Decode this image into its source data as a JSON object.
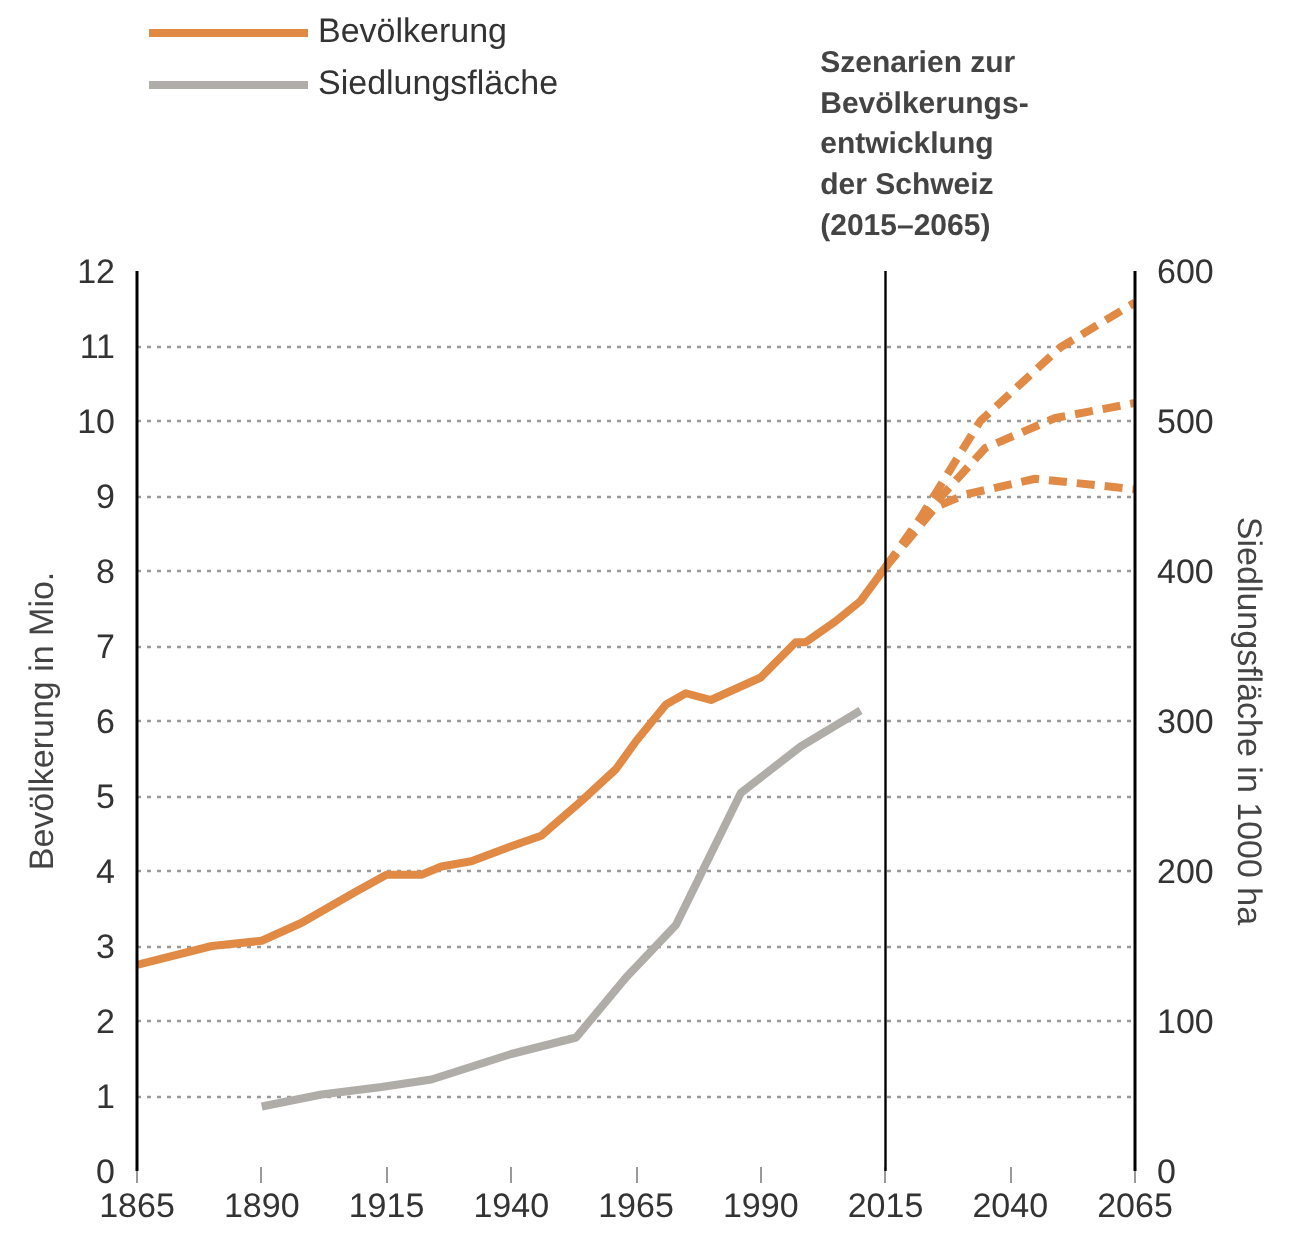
{
  "chart_data": {
    "type": "line",
    "ylabel": "Bevölkerung in Mio.",
    "y2label": "Siedlungsfläche in 1000 ha",
    "annotations": [
      "Szenarien zur\nBevölkerungs-\nentwicklung\nder Schweiz\n(2015–2065)"
    ],
    "xlim": [
      1865,
      2065
    ],
    "xticks": [
      1865,
      1890,
      1915,
      1940,
      1965,
      1990,
      2015,
      2040,
      2065
    ],
    "ylim": [
      0,
      12
    ],
    "yticks": [
      0,
      1,
      2,
      3,
      4,
      5,
      6,
      7,
      8,
      9,
      10,
      11,
      12
    ],
    "y2lim": [
      0,
      600
    ],
    "y2ticks": [
      0,
      100,
      200,
      300,
      400,
      500,
      600
    ],
    "grid": "y",
    "legend": "top left",
    "ref_lines": [
      {
        "axis": "x",
        "value": 2015,
        "color": "#000000"
      }
    ],
    "series": [
      {
        "name": "Bevölkerung",
        "color": "#e08a45",
        "x": [
          1865,
          1880,
          1890,
          1898,
          1909,
          1915,
          1922,
          1926,
          1932,
          1940,
          1946,
          1954,
          1961,
          1965,
          1971,
          1975,
          1980,
          1983,
          1990,
          1997,
          1999,
          2005,
          2010,
          2015
        ],
        "values": [
          2.75,
          3.0,
          3.07,
          3.31,
          3.73,
          3.95,
          3.95,
          4.06,
          4.13,
          4.33,
          4.47,
          4.93,
          5.36,
          5.73,
          6.22,
          6.37,
          6.28,
          6.37,
          6.58,
          7.05,
          7.05,
          7.33,
          7.6,
          8.05
        ]
      },
      {
        "name": "Siedlungsfläche",
        "color": "#b0ada8",
        "axis": "y2",
        "x": [
          1890,
          1902,
          1914,
          1924,
          1940,
          1953,
          1963,
          1973,
          1986,
          1998,
          2010
        ],
        "values": [
          43,
          51,
          56,
          61,
          78,
          89,
          129,
          164,
          252,
          283,
          307
        ]
      },
      {
        "color": "#e08a45",
        "line_style": "dashed",
        "x": [
          2015,
          2022,
          2034,
          2050,
          2065
        ],
        "values": [
          8.05,
          8.71,
          10.0,
          10.98,
          11.58
        ]
      },
      {
        "color": "#e08a45",
        "line_style": "dashed",
        "x": [
          2015,
          2023,
          2035,
          2049,
          2065
        ],
        "values": [
          8.05,
          8.76,
          9.64,
          10.04,
          10.24
        ]
      },
      {
        "color": "#e08a45",
        "line_style": "dashed",
        "x": [
          2015,
          2025,
          2031,
          2045,
          2065
        ],
        "values": [
          8.05,
          8.85,
          9.02,
          9.23,
          9.09
        ]
      }
    ]
  }
}
